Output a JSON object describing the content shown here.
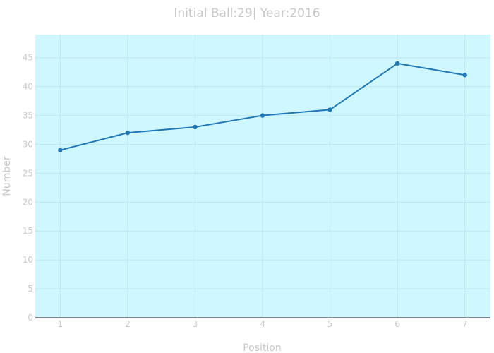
{
  "chart_data": {
    "type": "line",
    "title": "Initial Ball:29| Year:2016",
    "xlabel": "Position",
    "ylabel": "Number",
    "x": [
      1,
      2,
      3,
      4,
      5,
      6,
      7
    ],
    "series": [
      {
        "values": [
          29,
          32,
          33,
          35,
          36,
          44,
          42
        ]
      }
    ],
    "xlim": [
      0.63,
      7.38
    ],
    "ylim": [
      0,
      49
    ],
    "xticks": [
      1,
      2,
      3,
      4,
      5,
      6,
      7
    ],
    "yticks": [
      0,
      5,
      10,
      15,
      20,
      25,
      30,
      35,
      40,
      45
    ],
    "grid": true,
    "colors": {
      "plot_background": "#cff7ff",
      "line": "#1f77b4",
      "grid": "#bfe5ee",
      "axis_line": "#666666",
      "text": "#c8c8c8"
    }
  }
}
